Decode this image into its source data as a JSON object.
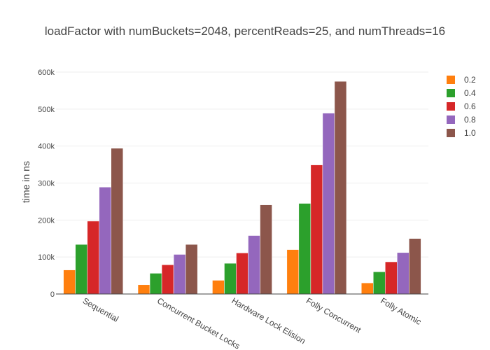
{
  "chart_data": {
    "type": "bar",
    "title": "loadFactor with numBuckets=2048, percentReads=25, and numThreads=16",
    "xlabel": "",
    "ylabel": "time in ns",
    "categories": [
      "Sequential",
      "Concurrent Bucket Locks",
      "Hardware Lock Elision",
      "Folly Concurrent",
      "Folly Atomic"
    ],
    "ylim": [
      0,
      600000
    ],
    "yticks": [
      0,
      100000,
      200000,
      300000,
      400000,
      500000,
      600000
    ],
    "ytick_labels": [
      "0",
      "100k",
      "200k",
      "300k",
      "400k",
      "500k",
      "600k"
    ],
    "grid": true,
    "legend_position": "right",
    "series": [
      {
        "name": "0.2",
        "color": "#ff7f0e",
        "values": [
          65000,
          25000,
          37000,
          120000,
          30000
        ]
      },
      {
        "name": "0.4",
        "color": "#2ca02c",
        "values": [
          134000,
          56000,
          83000,
          245000,
          60000
        ]
      },
      {
        "name": "0.6",
        "color": "#d62728",
        "values": [
          197000,
          79000,
          111000,
          349000,
          87000
        ]
      },
      {
        "name": "0.8",
        "color": "#9467bd",
        "values": [
          289000,
          107000,
          158000,
          489000,
          112000
        ]
      },
      {
        "name": "1.0",
        "color": "#8c564b",
        "values": [
          394000,
          134000,
          241000,
          575000,
          150000
        ]
      }
    ]
  }
}
